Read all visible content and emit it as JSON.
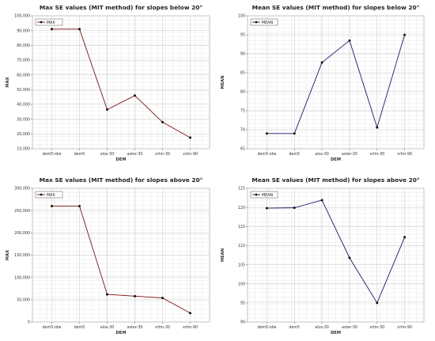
{
  "chart_data": [
    {
      "type": "line",
      "title": "Max SE values (MIT method) for slopes below 20°",
      "xlabel": "DEM",
      "ylabel": "MAX",
      "categories": [
        "dem5-idw",
        "dem5",
        "alos-30",
        "aster-30",
        "srtm-30",
        "srtm-90"
      ],
      "series": [
        {
          "name": "MAX",
          "values": [
            91000,
            91000,
            36500,
            46000,
            28000,
            17500
          ]
        }
      ],
      "ylim": [
        10000,
        100000
      ],
      "yticks": [
        10000,
        20000,
        30000,
        40000,
        50000,
        60000,
        70000,
        80000,
        90000,
        100000
      ],
      "ytick_labels": [
        "10,000",
        "20,000",
        "30,000",
        "40,000",
        "50,000",
        "60,000",
        "70,000",
        "80,000",
        "90,000",
        "100,000"
      ],
      "grid": true,
      "legend": "top-left",
      "color": "#7a1212"
    },
    {
      "type": "line",
      "title": "Mean SE values (MIT method) for slopes below 20°",
      "xlabel": "DEM",
      "ylabel": "MEAN",
      "categories": [
        "dem5-idw",
        "dem5",
        "alos-30",
        "aster-30",
        "srtm-30",
        "srtm-90"
      ],
      "series": [
        {
          "name": "MEAN",
          "values": [
            69.0,
            69.0,
            87.7,
            93.5,
            70.6,
            95.0
          ]
        }
      ],
      "ylim": [
        65,
        100
      ],
      "yticks": [
        65,
        70,
        75,
        80,
        85,
        90,
        95,
        100
      ],
      "ytick_labels": [
        "65",
        "70",
        "75",
        "80",
        "85",
        "90",
        "95",
        "100"
      ],
      "grid": true,
      "legend": "top-left",
      "color": "#1a1a6e"
    },
    {
      "type": "line",
      "title": "Max SE values (MIT method) for slopes above 20°",
      "xlabel": "DEM",
      "ylabel": "MAX",
      "categories": [
        "dem5-idw",
        "dem5",
        "alos-30",
        "aster-30",
        "srtm-30",
        "srtm-90"
      ],
      "series": [
        {
          "name": "MAX",
          "values": [
            260000,
            260000,
            62000,
            58000,
            54000,
            20000
          ]
        }
      ],
      "ylim": [
        0,
        300000
      ],
      "yticks": [
        0,
        50000,
        100000,
        150000,
        200000,
        250000,
        300000
      ],
      "ytick_labels": [
        "0",
        "50,000",
        "100,000",
        "150,000",
        "200,000",
        "250,000",
        "300,000"
      ],
      "grid": true,
      "legend": "top-left",
      "color": "#7a1212"
    },
    {
      "type": "line",
      "title": "Mean SE values (MIT method) for slopes above 20°",
      "xlabel": "DEM",
      "ylabel": "MEAN",
      "categories": [
        "dem5-idw",
        "dem5",
        "alos-30",
        "aster-30",
        "srtm-30",
        "srtm-90"
      ],
      "series": [
        {
          "name": "MEAN",
          "values": [
            119.8,
            119.9,
            121.9,
            106.8,
            95.0,
            112.2
          ]
        }
      ],
      "ylim": [
        90,
        125
      ],
      "yticks": [
        90,
        95,
        100,
        105,
        110,
        115,
        120,
        125
      ],
      "ytick_labels": [
        "90",
        "95",
        "100",
        "105",
        "110",
        "115",
        "120",
        "125"
      ],
      "grid": true,
      "legend": "top-left",
      "color": "#1a1a6e"
    }
  ]
}
